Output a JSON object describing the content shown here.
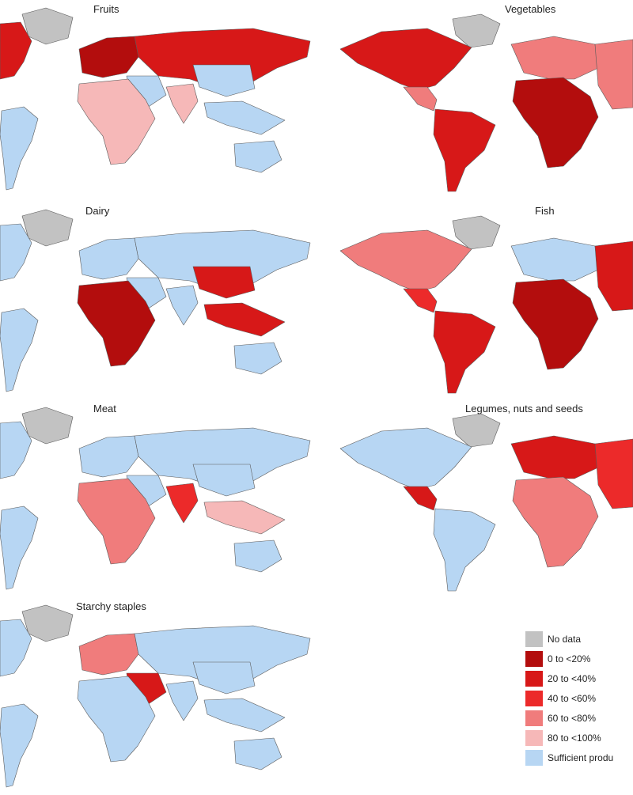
{
  "legend": {
    "items": [
      {
        "label": "No data",
        "color": "#c2c2c2"
      },
      {
        "label": "0 to <20%",
        "color": "#b30d0d"
      },
      {
        "label": "20 to <40%",
        "color": "#d71818"
      },
      {
        "label": "40 to <60%",
        "color": "#ec2a2a"
      },
      {
        "label": "60 to <80%",
        "color": "#f07c7c"
      },
      {
        "label": "80 to <100%",
        "color": "#f6b8b8"
      },
      {
        "label": "Sufficient produ",
        "color": "#b7d6f3"
      }
    ]
  },
  "maps": [
    {
      "title": "Fruits",
      "view": "americas-left",
      "fills": {
        "greenland": 0,
        "northamerica": 2,
        "southamerica": 6,
        "europe": 1,
        "asia": 2,
        "mideast": 6,
        "india": 5,
        "seasia": 6,
        "africa": 5,
        "australia": 6
      }
    },
    {
      "title": "Vegetables",
      "view": "americas-center",
      "fills": {
        "greenland": 0,
        "northamerica": 2,
        "centralamerica": 4,
        "southamerica": 2,
        "europe": 4,
        "asia": 4,
        "africa": 1
      }
    },
    {
      "title": "Dairy",
      "view": "americas-left",
      "fills": {
        "greenland": 0,
        "northamerica": 6,
        "southamerica": 6,
        "europe": 6,
        "asia": 6,
        "mideast": 6,
        "india": 6,
        "china": 2,
        "seasia": 2,
        "africa": 1,
        "australia": 6
      }
    },
    {
      "title": "Fish",
      "view": "americas-center",
      "fills": {
        "greenland": 0,
        "northamerica": 4,
        "centralamerica": 3,
        "southamerica": 2,
        "europe": 6,
        "asia": 2,
        "africa": 1
      }
    },
    {
      "title": "Meat",
      "view": "americas-left",
      "fills": {
        "greenland": 0,
        "northamerica": 6,
        "southamerica": 6,
        "europe": 6,
        "asia": 6,
        "mideast": 6,
        "india": 3,
        "seasia": 5,
        "africa": 4,
        "australia": 6
      }
    },
    {
      "title": "Legumes, nuts and seeds",
      "view": "americas-center",
      "fills": {
        "greenland": 0,
        "northamerica": 6,
        "centralamerica": 2,
        "southamerica": 6,
        "europe": 2,
        "asia": 3,
        "africa": 4
      }
    },
    {
      "title": "Starchy staples",
      "view": "americas-left",
      "fills": {
        "greenland": 0,
        "northamerica": 6,
        "southamerica": 6,
        "europe": 4,
        "asia": 6,
        "mideast": 2,
        "india": 6,
        "seasia": 6,
        "africa": 6,
        "australia": 6
      }
    }
  ]
}
